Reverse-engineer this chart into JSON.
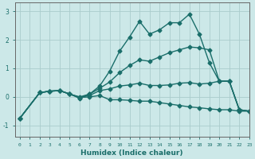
{
  "title": "",
  "xlabel": "Humidex (Indice chaleur)",
  "ylabel": "",
  "xlim": [
    -0.5,
    23
  ],
  "ylim": [
    -1.4,
    3.3
  ],
  "xticks": [
    0,
    1,
    2,
    3,
    4,
    5,
    6,
    7,
    8,
    9,
    10,
    11,
    12,
    13,
    14,
    15,
    16,
    17,
    18,
    19,
    20,
    21,
    22,
    23
  ],
  "yticks": [
    -1,
    0,
    1,
    2,
    3
  ],
  "background_color": "#cce8e8",
  "grid_color": "#aacccc",
  "line_color": "#1a6e6a",
  "lines": [
    {
      "x": [
        0,
        2,
        3,
        4,
        5,
        6,
        7,
        8,
        9,
        10,
        11,
        12,
        13,
        14,
        15,
        16,
        17,
        18,
        19,
        20,
        21,
        22,
        23
      ],
      "y": [
        -0.75,
        0.15,
        0.2,
        0.22,
        0.1,
        -0.05,
        0.1,
        0.38,
        0.9,
        1.6,
        2.1,
        2.65,
        2.2,
        2.35,
        2.6,
        2.6,
        2.9,
        2.2,
        1.2,
        0.55,
        0.55,
        -0.45,
        -0.5
      ],
      "marker": "D",
      "markersize": 2.5,
      "linewidth": 1.0
    },
    {
      "x": [
        0,
        2,
        3,
        4,
        5,
        6,
        7,
        8,
        9,
        10,
        11,
        12,
        13,
        14,
        15,
        16,
        17,
        18,
        19,
        20,
        21,
        22,
        23
      ],
      "y": [
        -0.75,
        0.15,
        0.2,
        0.22,
        0.1,
        0.0,
        0.1,
        0.3,
        0.52,
        0.85,
        1.1,
        1.3,
        1.25,
        1.4,
        1.55,
        1.65,
        1.75,
        1.72,
        1.65,
        0.55,
        0.55,
        -0.45,
        -0.5
      ],
      "marker": "D",
      "markersize": 2.5,
      "linewidth": 1.0
    },
    {
      "x": [
        0,
        2,
        3,
        4,
        5,
        6,
        7,
        8,
        9,
        10,
        11,
        12,
        13,
        14,
        15,
        16,
        17,
        18,
        19,
        20,
        21,
        22,
        23
      ],
      "y": [
        -0.75,
        0.15,
        0.2,
        0.22,
        0.1,
        -0.02,
        0.05,
        0.22,
        0.28,
        0.38,
        0.42,
        0.48,
        0.4,
        0.4,
        0.42,
        0.48,
        0.5,
        0.45,
        0.48,
        0.55,
        0.55,
        -0.45,
        -0.5
      ],
      "marker": "D",
      "markersize": 2.5,
      "linewidth": 1.0
    },
    {
      "x": [
        0,
        2,
        3,
        4,
        5,
        6,
        7,
        8,
        9,
        10,
        11,
        12,
        13,
        14,
        15,
        16,
        17,
        18,
        19,
        20,
        21,
        22,
        23
      ],
      "y": [
        -0.75,
        0.15,
        0.2,
        0.22,
        0.1,
        -0.02,
        0.0,
        0.05,
        -0.1,
        -0.1,
        -0.12,
        -0.15,
        -0.15,
        -0.2,
        -0.25,
        -0.3,
        -0.35,
        -0.38,
        -0.42,
        -0.45,
        -0.45,
        -0.5,
        -0.5
      ],
      "marker": "D",
      "markersize": 2.5,
      "linewidth": 1.0
    }
  ]
}
